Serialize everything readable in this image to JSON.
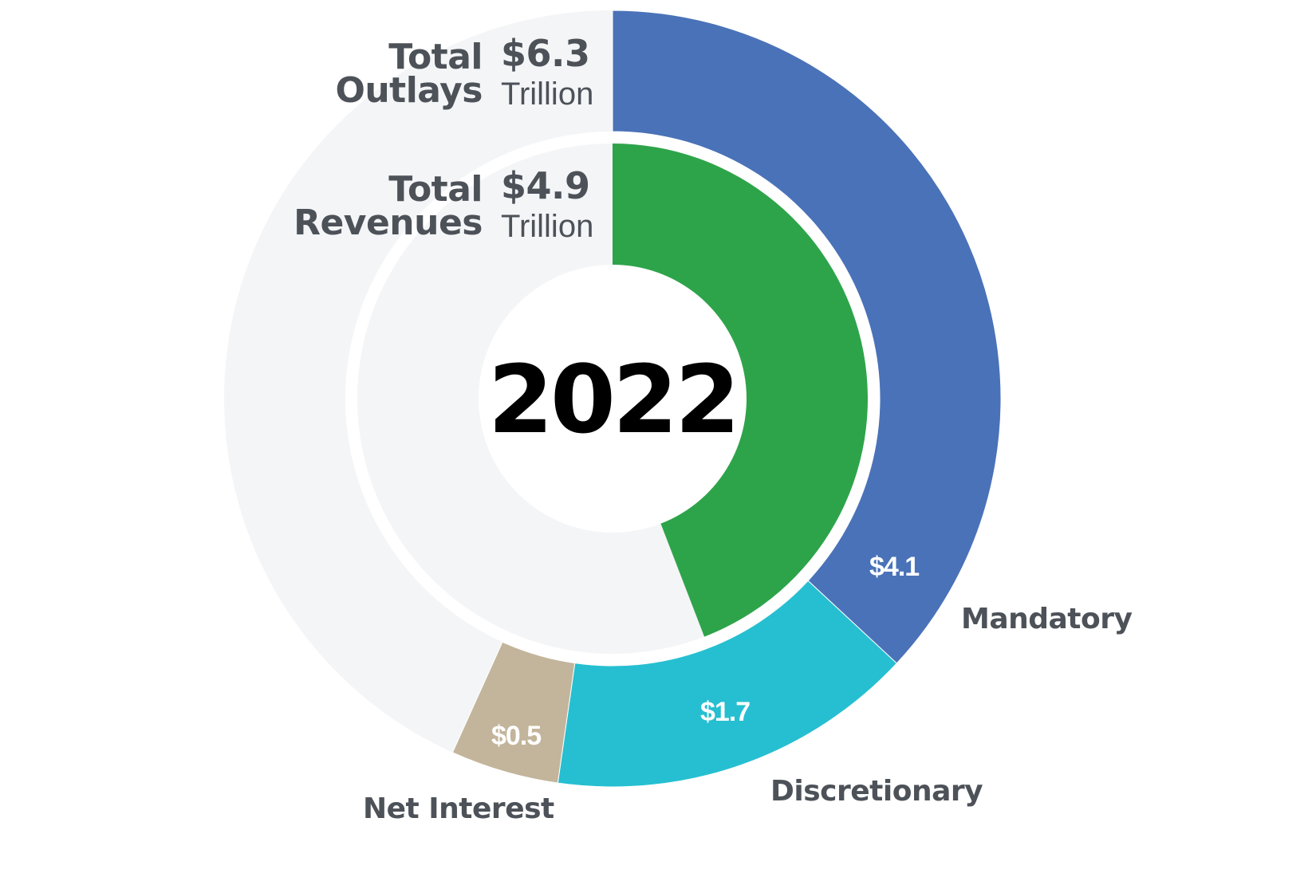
{
  "chart_data": {
    "type": "pie",
    "subtype": "nested-donut",
    "title": "2022",
    "units": "Trillion USD",
    "full_circle_scale_trillion": 11.1,
    "outer_ring": {
      "name": "Total Outlays",
      "total": 6.3,
      "total_label": "$6.3",
      "unit_label": "Trillion",
      "slices": [
        {
          "name": "Mandatory",
          "value": 4.1,
          "label": "$4.1",
          "color": "#4a72b8"
        },
        {
          "name": "Discretionary",
          "value": 1.7,
          "label": "$1.7",
          "color": "#26bfd1"
        },
        {
          "name": "Net Interest",
          "value": 0.5,
          "label": "$0.5",
          "color": "#c2b59b"
        }
      ]
    },
    "inner_ring": {
      "name": "Total Revenues",
      "total": 4.9,
      "total_label": "$4.9",
      "unit_label": "Trillion",
      "slices": [
        {
          "name": "Revenues",
          "value": 4.9,
          "color": "#2ea44a"
        }
      ]
    },
    "background_color": "#f4f5f7",
    "text_color": "#4d5259"
  },
  "labels": {
    "year": "2022",
    "outlays_line1": "Total",
    "outlays_line2": "Outlays",
    "outlays_value": "$6.3",
    "outlays_unit": "Trillion",
    "revenues_line1": "Total",
    "revenues_line2": "Revenues",
    "revenues_value": "$4.9",
    "revenues_unit": "Trillion",
    "mandatory": "Mandatory",
    "mandatory_value": "$4.1",
    "discretionary": "Discretionary",
    "discretionary_value": "$1.7",
    "net_interest": "Net Interest",
    "net_interest_value": "$0.5"
  }
}
